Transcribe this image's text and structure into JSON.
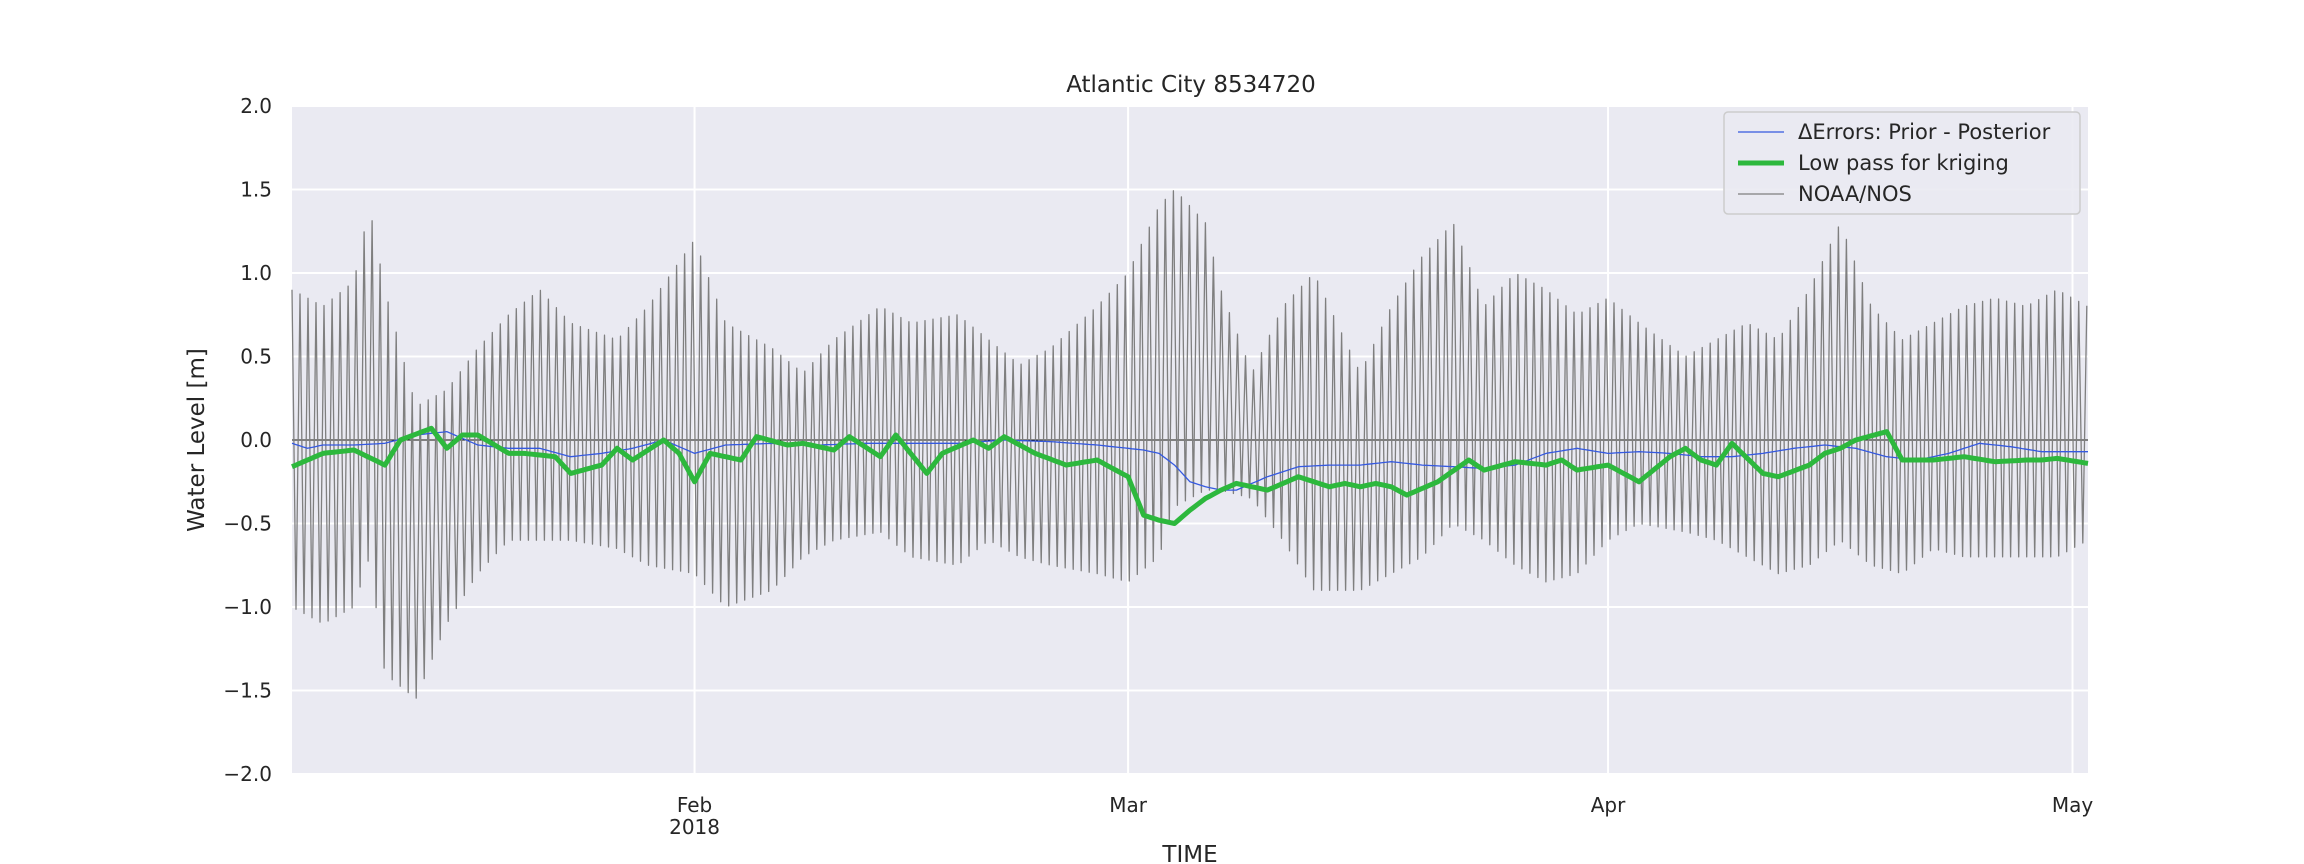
{
  "chart_data": {
    "type": "line",
    "title": "Atlantic City  8534720",
    "xlabel": "TIME",
    "ylabel": "Water Level [m]",
    "xlim": [
      "2018-01-06",
      "2018-05-02"
    ],
    "ylim": [
      -2.0,
      2.0
    ],
    "grid": true,
    "legend_position": "top-right",
    "y_ticks": [
      {
        "value": 2.0,
        "label": "2.0"
      },
      {
        "value": 1.5,
        "label": "1.5"
      },
      {
        "value": 1.0,
        "label": "1.0"
      },
      {
        "value": 0.5,
        "label": "0.5"
      },
      {
        "value": 0.0,
        "label": "0.0"
      },
      {
        "value": -0.5,
        "label": "−0.5"
      },
      {
        "value": -1.0,
        "label": "−1.0"
      },
      {
        "value": -1.5,
        "label": "−1.5"
      },
      {
        "value": -2.0,
        "label": "−2.0"
      }
    ],
    "x_ticks": [
      {
        "date": "2018-02-01",
        "label": "Feb",
        "sublabel": "2018"
      },
      {
        "date": "2018-03-01",
        "label": "Mar",
        "sublabel": ""
      },
      {
        "date": "2018-04-01",
        "label": "Apr",
        "sublabel": ""
      },
      {
        "date": "2018-05-01",
        "label": "May",
        "sublabel": ""
      }
    ],
    "series": [
      {
        "name": "NOAA/NOS",
        "color": "#7f7f7f",
        "kind": "tidal",
        "period_hours": 12.42,
        "envelope": {
          "dates": [
            "2018-01-06",
            "2018-01-08",
            "2018-01-10",
            "2018-01-11",
            "2018-01-12",
            "2018-01-14",
            "2018-01-16",
            "2018-01-18",
            "2018-01-20",
            "2018-01-22",
            "2018-01-24",
            "2018-01-27",
            "2018-01-29",
            "2018-02-01",
            "2018-02-03",
            "2018-02-06",
            "2018-02-08",
            "2018-02-10",
            "2018-02-13",
            "2018-02-15",
            "2018-02-18",
            "2018-02-20",
            "2018-02-22",
            "2018-02-24",
            "2018-02-27",
            "2018-03-01",
            "2018-03-03",
            "2018-03-04",
            "2018-03-06",
            "2018-03-07",
            "2018-03-09",
            "2018-03-11",
            "2018-03-13",
            "2018-03-16",
            "2018-03-18",
            "2018-03-20",
            "2018-03-22",
            "2018-03-24",
            "2018-03-26",
            "2018-03-28",
            "2018-03-30",
            "2018-04-01",
            "2018-04-03",
            "2018-04-06",
            "2018-04-08",
            "2018-04-10",
            "2018-04-12",
            "2018-04-14",
            "2018-04-16",
            "2018-04-18",
            "2018-04-20",
            "2018-04-22",
            "2018-04-24",
            "2018-04-26",
            "2018-04-28",
            "2018-04-30",
            "2018-05-02"
          ],
          "high": [
            0.9,
            0.8,
            0.95,
            1.4,
            0.9,
            0.2,
            0.3,
            0.55,
            0.75,
            0.9,
            0.7,
            0.6,
            0.8,
            1.2,
            0.7,
            0.55,
            0.4,
            0.6,
            0.8,
            0.7,
            0.75,
            0.6,
            0.45,
            0.55,
            0.8,
            1.0,
            1.4,
            1.5,
            1.3,
            0.9,
            0.4,
            0.8,
            1.0,
            0.4,
            0.8,
            1.1,
            1.3,
            0.8,
            1.0,
            0.9,
            0.75,
            0.85,
            0.7,
            0.5,
            0.6,
            0.7,
            0.6,
            0.9,
            1.3,
            0.8,
            0.6,
            0.7,
            0.8,
            0.85,
            0.8,
            0.9,
            0.8
          ],
          "low": [
            -1.0,
            -1.1,
            -1.0,
            -0.7,
            -1.4,
            -1.55,
            -1.1,
            -0.8,
            -0.6,
            -0.6,
            -0.6,
            -0.65,
            -0.75,
            -0.8,
            -1.0,
            -0.9,
            -0.7,
            -0.6,
            -0.55,
            -0.7,
            -0.75,
            -0.6,
            -0.7,
            -0.75,
            -0.8,
            -0.85,
            -0.7,
            -0.4,
            -0.3,
            -0.3,
            -0.35,
            -0.6,
            -0.9,
            -0.9,
            -0.8,
            -0.7,
            -0.5,
            -0.6,
            -0.75,
            -0.85,
            -0.8,
            -0.6,
            -0.5,
            -0.55,
            -0.6,
            -0.7,
            -0.8,
            -0.75,
            -0.6,
            -0.75,
            -0.8,
            -0.65,
            -0.7,
            -0.7,
            -0.7,
            -0.7,
            -0.6
          ]
        }
      },
      {
        "name": "ΔErrors: Prior - Posterior",
        "color": "#3559e0",
        "kind": "line",
        "points": {
          "dates": [
            "2018-01-06",
            "2018-01-07",
            "2018-01-08",
            "2018-01-10",
            "2018-01-12",
            "2018-01-14",
            "2018-01-16",
            "2018-01-18",
            "2018-01-20",
            "2018-01-22",
            "2018-01-24",
            "2018-01-26",
            "2018-01-28",
            "2018-01-30",
            "2018-02-01",
            "2018-02-03",
            "2018-02-06",
            "2018-02-09",
            "2018-02-12",
            "2018-02-15",
            "2018-02-18",
            "2018-02-21",
            "2018-02-24",
            "2018-02-27",
            "2018-03-01",
            "2018-03-02",
            "2018-03-03",
            "2018-03-04",
            "2018-03-05",
            "2018-03-06",
            "2018-03-07",
            "2018-03-08",
            "2018-03-10",
            "2018-03-12",
            "2018-03-14",
            "2018-03-16",
            "2018-03-18",
            "2018-03-20",
            "2018-03-22",
            "2018-03-24",
            "2018-03-26",
            "2018-03-28",
            "2018-03-30",
            "2018-04-01",
            "2018-04-03",
            "2018-04-05",
            "2018-04-07",
            "2018-04-09",
            "2018-04-11",
            "2018-04-13",
            "2018-04-15",
            "2018-04-17",
            "2018-04-19",
            "2018-04-21",
            "2018-04-23",
            "2018-04-25",
            "2018-04-27",
            "2018-04-29",
            "2018-05-02"
          ],
          "values": [
            -0.02,
            -0.05,
            -0.03,
            -0.03,
            -0.02,
            0.03,
            0.05,
            -0.03,
            -0.05,
            -0.05,
            -0.1,
            -0.08,
            -0.05,
            0.0,
            -0.08,
            -0.03,
            -0.02,
            -0.03,
            -0.02,
            -0.02,
            -0.02,
            0.0,
            -0.01,
            -0.03,
            -0.05,
            -0.06,
            -0.08,
            -0.15,
            -0.25,
            -0.28,
            -0.3,
            -0.3,
            -0.22,
            -0.16,
            -0.15,
            -0.15,
            -0.13,
            -0.15,
            -0.16,
            -0.17,
            -0.15,
            -0.08,
            -0.05,
            -0.08,
            -0.07,
            -0.08,
            -0.1,
            -0.1,
            -0.08,
            -0.05,
            -0.03,
            -0.05,
            -0.1,
            -0.12,
            -0.08,
            -0.02,
            -0.04,
            -0.07,
            -0.07
          ]
        }
      },
      {
        "name": "Low pass for kriging",
        "color": "#2db83d",
        "kind": "line",
        "points": {
          "dates": [
            "2018-01-06",
            "2018-01-08",
            "2018-01-10",
            "2018-01-12",
            "2018-01-13",
            "2018-01-15",
            "2018-01-16",
            "2018-01-17",
            "2018-01-18",
            "2018-01-20",
            "2018-01-21",
            "2018-01-23",
            "2018-01-24",
            "2018-01-26",
            "2018-01-27",
            "2018-01-28",
            "2018-01-30",
            "2018-01-31",
            "2018-02-01",
            "2018-02-02",
            "2018-02-04",
            "2018-02-05",
            "2018-02-07",
            "2018-02-08",
            "2018-02-10",
            "2018-02-11",
            "2018-02-13",
            "2018-02-14",
            "2018-02-16",
            "2018-02-17",
            "2018-02-19",
            "2018-02-20",
            "2018-02-21",
            "2018-02-23",
            "2018-02-25",
            "2018-02-27",
            "2018-03-01",
            "2018-03-02",
            "2018-03-03",
            "2018-03-04",
            "2018-03-05",
            "2018-03-06",
            "2018-03-07",
            "2018-03-08",
            "2018-03-10",
            "2018-03-12",
            "2018-03-14",
            "2018-03-15",
            "2018-03-16",
            "2018-03-17",
            "2018-03-18",
            "2018-03-19",
            "2018-03-21",
            "2018-03-23",
            "2018-03-24",
            "2018-03-26",
            "2018-03-28",
            "2018-03-29",
            "2018-03-30",
            "2018-04-01",
            "2018-04-03",
            "2018-04-05",
            "2018-04-06",
            "2018-04-07",
            "2018-04-08",
            "2018-04-09",
            "2018-04-11",
            "2018-04-12",
            "2018-04-14",
            "2018-04-15",
            "2018-04-16",
            "2018-04-17",
            "2018-04-19",
            "2018-04-20",
            "2018-04-22",
            "2018-04-24",
            "2018-04-26",
            "2018-04-28",
            "2018-04-29",
            "2018-04-30",
            "2018-05-02"
          ],
          "values": [
            -0.16,
            -0.08,
            -0.06,
            -0.15,
            0.0,
            0.07,
            -0.05,
            0.03,
            0.03,
            -0.08,
            -0.08,
            -0.1,
            -0.2,
            -0.15,
            -0.05,
            -0.12,
            0.0,
            -0.08,
            -0.25,
            -0.08,
            -0.12,
            0.02,
            -0.03,
            -0.02,
            -0.06,
            0.02,
            -0.1,
            0.03,
            -0.2,
            -0.08,
            0.0,
            -0.05,
            0.02,
            -0.08,
            -0.15,
            -0.12,
            -0.22,
            -0.45,
            -0.48,
            -0.5,
            -0.42,
            -0.35,
            -0.3,
            -0.26,
            -0.3,
            -0.22,
            -0.28,
            -0.26,
            -0.28,
            -0.26,
            -0.28,
            -0.33,
            -0.25,
            -0.12,
            -0.18,
            -0.13,
            -0.15,
            -0.12,
            -0.18,
            -0.15,
            -0.25,
            -0.1,
            -0.05,
            -0.12,
            -0.15,
            -0.02,
            -0.2,
            -0.22,
            -0.15,
            -0.08,
            -0.05,
            0.0,
            0.05,
            -0.12,
            -0.12,
            -0.1,
            -0.13,
            -0.12,
            -0.12,
            -0.11,
            -0.14
          ]
        }
      }
    ]
  }
}
